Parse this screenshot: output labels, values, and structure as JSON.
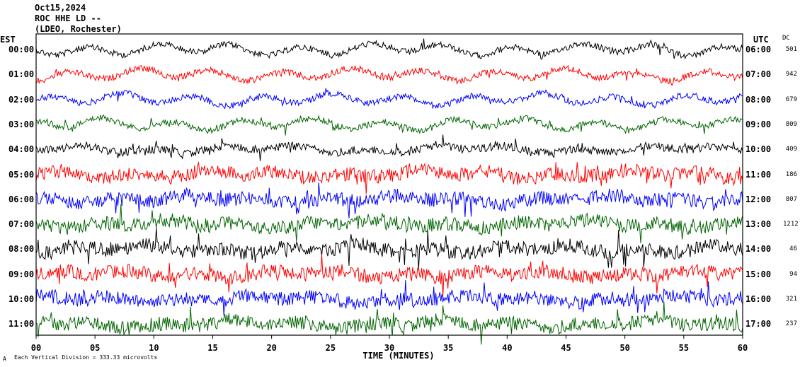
{
  "header": {
    "date": "Oct15,2024",
    "station": "ROC HHE LD --",
    "network": "(LDEO, Rochester)"
  },
  "corner_labels": {
    "left": "EST",
    "right": "UTC",
    "dc": "DC"
  },
  "footer": {
    "scale_note": "Each Vertical Division = 333.33 microvolts",
    "mark": "A"
  },
  "colors": {
    "trace_cycle": [
      "#000000",
      "#ff0000",
      "#0000ff",
      "#006400"
    ],
    "frame": "#000000",
    "background": "#ffffff"
  },
  "chart_data": {
    "type": "line",
    "title": "Oct15,2024 ROC HHE LD -- (LDEO, Rochester)",
    "xlabel": "TIME (MINUTES)",
    "ylabel": "",
    "x_ticks": [
      "00",
      "05",
      "10",
      "15",
      "20",
      "25",
      "30",
      "35",
      "40",
      "45",
      "50",
      "55",
      "60"
    ],
    "xlim": [
      0,
      60
    ],
    "grid": false,
    "legend": "none",
    "note": "Helicorder seismogram: each row is one hour of trace, colored in a repeating black/red/blue/green cycle.",
    "rows": [
      {
        "est": "00:00",
        "utc": "06:00",
        "dc": "501",
        "color": "#000000"
      },
      {
        "est": "01:00",
        "utc": "07:00",
        "dc": "942",
        "color": "#ff0000"
      },
      {
        "est": "02:00",
        "utc": "08:00",
        "dc": "679",
        "color": "#0000ff"
      },
      {
        "est": "03:00",
        "utc": "09:00",
        "dc": "809",
        "color": "#006400"
      },
      {
        "est": "04:00",
        "utc": "10:00",
        "dc": "409",
        "color": "#000000"
      },
      {
        "est": "05:00",
        "utc": "11:00",
        "dc": "186",
        "color": "#ff0000"
      },
      {
        "est": "06:00",
        "utc": "12:00",
        "dc": "807",
        "color": "#0000ff"
      },
      {
        "est": "07:00",
        "utc": "13:00",
        "dc": "1212",
        "color": "#006400"
      },
      {
        "est": "08:00",
        "utc": "14:00",
        "dc": "46",
        "color": "#000000"
      },
      {
        "est": "09:00",
        "utc": "15:00",
        "dc": "94",
        "color": "#ff0000"
      },
      {
        "est": "10:00",
        "utc": "16:00",
        "dc": "321",
        "color": "#0000ff"
      },
      {
        "est": "11:00",
        "utc": "17:00",
        "dc": "237",
        "color": "#006400"
      }
    ]
  }
}
